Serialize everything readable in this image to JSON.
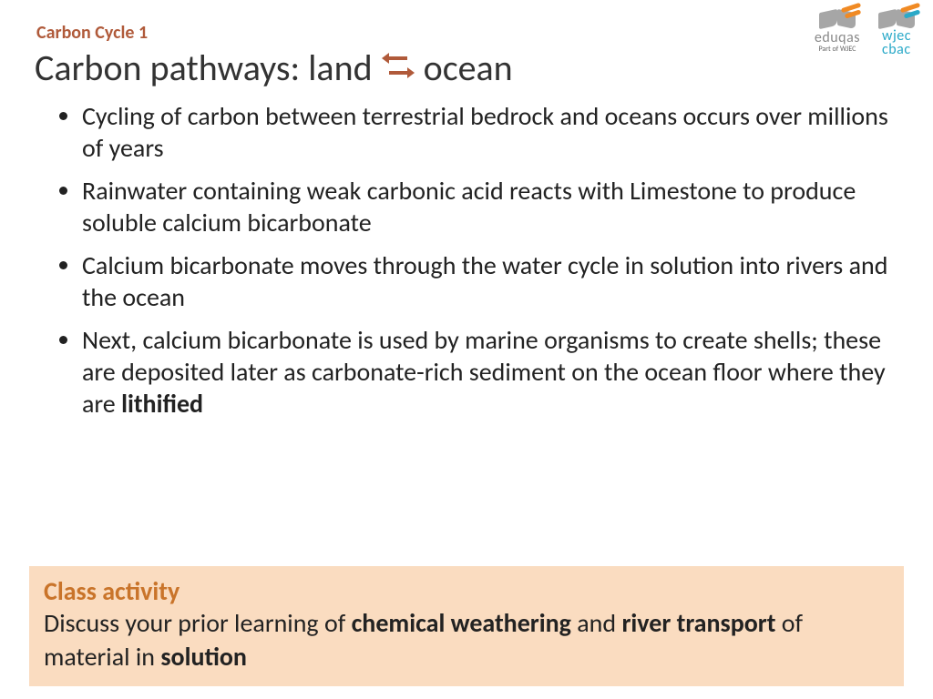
{
  "colors": {
    "topic": "#b05a3a",
    "title": "#333333",
    "swap_icon": "#b05a3a",
    "bullet_text": "#222222",
    "activity_bg": "#fadcc0",
    "activity_title": "#c9742a",
    "logo_grey": "#a6a6a6",
    "logo_orange": "#f08a24",
    "logo_blue": "#2aa9c8",
    "logo_text_grey": "#8a8a8a",
    "logo_text_blue": "#2aa9c8"
  },
  "fonts": {
    "topic_size": "20px",
    "title_size": "40px",
    "bullet_size": "28px",
    "activity_title_size": "28px",
    "activity_body_size": "28px",
    "logo_text_size": "18px"
  },
  "topic": "Carbon Cycle 1",
  "title": {
    "left": "Carbon pathways: land",
    "right": "ocean"
  },
  "bullets": [
    {
      "text": "Cycling of carbon between terrestrial bedrock and oceans occurs over millions of years"
    },
    {
      "text": "Rainwater containing weak carbonic acid reacts with Limestone to produce soluble calcium bicarbonate"
    },
    {
      "text": "Calcium bicarbonate moves through the water cycle in solution into rivers and the ocean"
    },
    {
      "text_parts": [
        {
          "t": "Next, calcium bicarbonate is used by marine organisms to create shells; these are deposited later as carbonate-rich sediment on the ocean floor where they are ",
          "b": false
        },
        {
          "t": "lithified",
          "b": true
        }
      ]
    }
  ],
  "activity": {
    "title": "Class activity",
    "body_parts": [
      {
        "t": "Discuss your prior learning of ",
        "b": false
      },
      {
        "t": "chemical weathering",
        "b": true
      },
      {
        "t": " and ",
        "b": false
      },
      {
        "t": "river transport",
        "b": true
      },
      {
        "t": " of material in ",
        "b": false
      },
      {
        "t": "solution",
        "b": true
      }
    ]
  },
  "logos": {
    "eduqas": {
      "text": "eduqas",
      "sub": "Part of WJEC"
    },
    "wjec": {
      "line1": "wjec",
      "line2": "cbac"
    }
  }
}
